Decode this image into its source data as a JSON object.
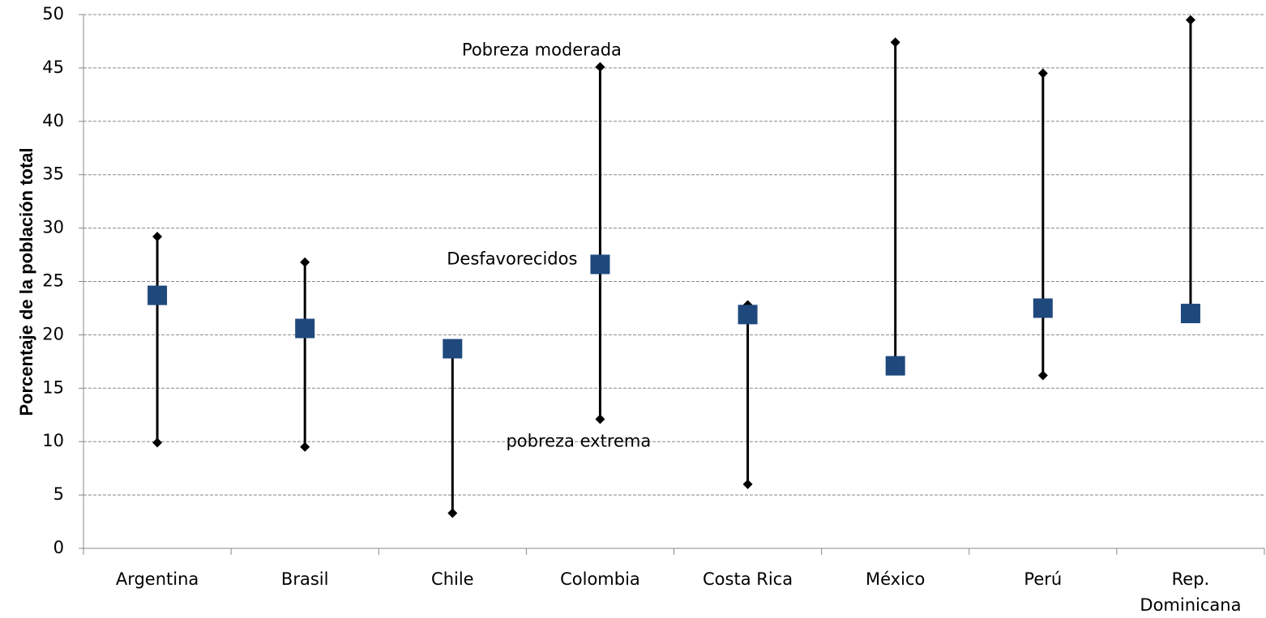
{
  "chart_data": {
    "type": "hilo",
    "ylabel": "Porcentaje de la población total",
    "categories": [
      "Argentina",
      "Brasil",
      "Chile",
      "Colombia",
      "Costa Rica",
      "México",
      "Perú",
      "Rep. Dominicana"
    ],
    "series": [
      {
        "name": "Pobreza moderada",
        "role": "high",
        "color": "#000000",
        "values": [
          29.2,
          26.8,
          18.7,
          45.1,
          22.8,
          47.4,
          44.5,
          49.5
        ]
      },
      {
        "name": "Desfavorecidos",
        "role": "mid",
        "color": "#1f497d",
        "values": [
          23.7,
          20.6,
          18.7,
          26.6,
          21.9,
          17.1,
          22.5,
          22.0
        ]
      },
      {
        "name": "pobreza extrema",
        "role": "low",
        "color": "#000000",
        "values": [
          9.9,
          9.5,
          3.3,
          12.1,
          6.0,
          17.1,
          16.2,
          22.0
        ]
      }
    ],
    "ylim": [
      0,
      50
    ],
    "yticks": [
      0,
      5,
      10,
      15,
      20,
      25,
      30,
      35,
      40,
      45,
      50
    ],
    "grid": true
  }
}
